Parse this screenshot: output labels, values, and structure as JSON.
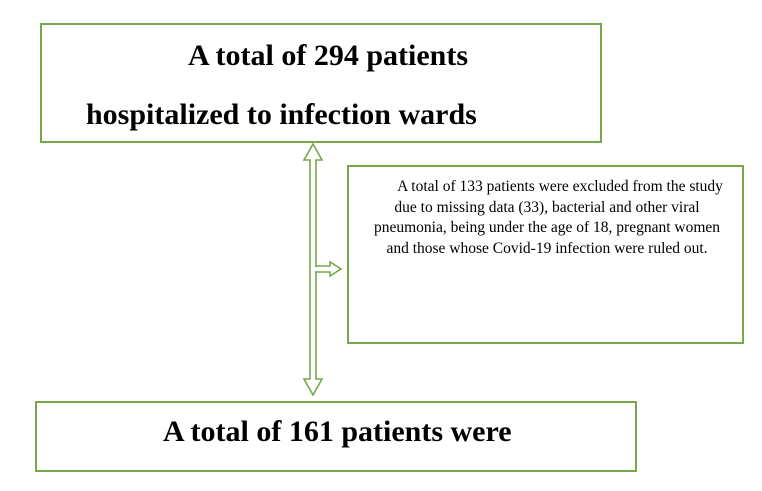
{
  "diagram": {
    "accent_color": "#77a84a",
    "top_box": {
      "line1": "A total of 294 patients",
      "line2": "hospitalized to infection wards"
    },
    "exclusion_box": {
      "text": "A total of 133 patients were excluded from the study due to missing data (33), bacterial and other viral pneumonia, being under the age of 18, pregnant women and those whose Covid-19 infection were ruled out."
    },
    "bottom_box": {
      "line1": "A total of 161 patients were"
    }
  }
}
